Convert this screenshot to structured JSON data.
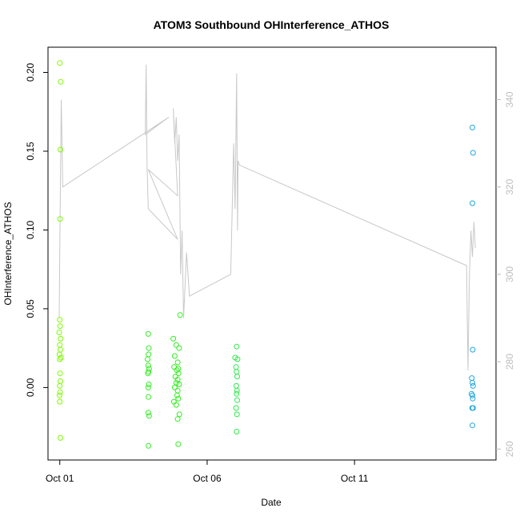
{
  "chart_data": {
    "type": "scatter",
    "title": "ATOM3 Southbound OHInterference_ATHOS",
    "xlabel": "Date",
    "ylabel": "OHInterference_ATHOS",
    "x_unit": "day of October",
    "xlim": [
      0.6,
      15.8
    ],
    "ylim": [
      -0.046,
      0.216
    ],
    "ylim_right": [
      257.5,
      352
    ],
    "x_ticks": [
      {
        "value": 1,
        "label": "Oct 01"
      },
      {
        "value": 6,
        "label": "Oct 06"
      },
      {
        "value": 11,
        "label": "Oct 11"
      }
    ],
    "y_ticks": [
      {
        "value": 0.0,
        "label": "0.00"
      },
      {
        "value": 0.05,
        "label": "0.05"
      },
      {
        "value": 0.1,
        "label": "0.10"
      },
      {
        "value": 0.15,
        "label": "0.15"
      },
      {
        "value": 0.2,
        "label": "0.20"
      }
    ],
    "y_ticks_right": [
      {
        "value": 260,
        "label": "260"
      },
      {
        "value": 280,
        "label": "280"
      },
      {
        "value": 300,
        "label": "300"
      },
      {
        "value": 320,
        "label": "320"
      },
      {
        "value": 340,
        "label": "340"
      }
    ],
    "grid": false,
    "series": [
      {
        "kind": "points",
        "color": "#7cfc00",
        "points": [
          [
            1.0,
            0.206
          ],
          [
            1.03,
            0.194
          ],
          [
            1.02,
            0.151
          ],
          [
            1.01,
            0.107
          ],
          [
            1.0,
            0.043
          ],
          [
            1.01,
            0.039
          ],
          [
            0.98,
            0.035
          ],
          [
            1.03,
            0.031
          ],
          [
            1.0,
            0.027
          ],
          [
            1.02,
            0.024
          ],
          [
            0.99,
            0.021
          ],
          [
            1.04,
            0.019
          ],
          [
            1.0,
            0.018
          ],
          [
            1.01,
            0.009
          ],
          [
            1.02,
            0.004
          ],
          [
            1.0,
            0.001
          ],
          [
            1.01,
            -0.003
          ],
          [
            0.99,
            -0.005
          ],
          [
            1.0,
            -0.009
          ],
          [
            1.02,
            -0.032
          ]
        ]
      },
      {
        "kind": "points",
        "color": "#33ee22",
        "points": [
          [
            4.0,
            0.034
          ],
          [
            4.02,
            0.025
          ],
          [
            4.01,
            0.021
          ],
          [
            3.98,
            0.018
          ],
          [
            4.0,
            0.014
          ],
          [
            4.03,
            0.012
          ],
          [
            4.01,
            0.01
          ],
          [
            3.99,
            0.009
          ],
          [
            4.02,
            0.002
          ],
          [
            4.0,
            0.0
          ],
          [
            4.01,
            -0.006
          ],
          [
            4.0,
            -0.016
          ],
          [
            4.03,
            -0.018
          ],
          [
            4.01,
            -0.037
          ],
          [
            4.85,
            0.031
          ],
          [
            4.95,
            0.027
          ],
          [
            5.05,
            0.025
          ],
          [
            4.9,
            0.02
          ],
          [
            5.0,
            0.016
          ],
          [
            4.88,
            0.013
          ],
          [
            5.02,
            0.012
          ],
          [
            4.97,
            0.011
          ],
          [
            5.03,
            0.009
          ],
          [
            4.92,
            0.007
          ],
          [
            5.0,
            0.005
          ],
          [
            4.95,
            0.003
          ],
          [
            5.05,
            0.002
          ],
          [
            4.9,
            0.0
          ],
          [
            5.0,
            -0.002
          ],
          [
            4.98,
            -0.005
          ],
          [
            5.02,
            -0.007
          ],
          [
            4.87,
            -0.009
          ],
          [
            4.95,
            -0.011
          ],
          [
            5.06,
            -0.017
          ],
          [
            5.0,
            -0.02
          ],
          [
            5.08,
            0.046
          ],
          [
            5.02,
            -0.036
          ]
        ]
      },
      {
        "kind": "points",
        "color": "#2ee84a",
        "points": [
          [
            7.0,
            0.026
          ],
          [
            6.95,
            0.019
          ],
          [
            7.03,
            0.018
          ],
          [
            6.98,
            0.013
          ],
          [
            7.0,
            0.01
          ],
          [
            7.02,
            0.007
          ],
          [
            6.99,
            0.001
          ],
          [
            7.01,
            -0.002
          ],
          [
            7.0,
            -0.004
          ],
          [
            7.02,
            -0.008
          ],
          [
            6.98,
            -0.013
          ],
          [
            7.01,
            -0.017
          ],
          [
            7.0,
            -0.028
          ]
        ]
      },
      {
        "kind": "points",
        "color": "#1fa8e0",
        "points": [
          [
            15.0,
            0.165
          ],
          [
            15.02,
            0.149
          ],
          [
            15.0,
            0.117
          ],
          [
            15.01,
            0.024
          ],
          [
            14.98,
            0.006
          ],
          [
            15.0,
            0.003
          ],
          [
            15.02,
            0.001
          ],
          [
            14.97,
            -0.004
          ],
          [
            15.0,
            -0.005
          ],
          [
            15.01,
            -0.007
          ],
          [
            14.99,
            -0.013
          ],
          [
            15.02,
            -0.013
          ],
          [
            15.0,
            -0.024
          ]
        ]
      },
      {
        "kind": "line",
        "axis": "right",
        "color": "#c8c8c8",
        "points": [
          [
            0.98,
            290
          ],
          [
            1.0,
            305
          ],
          [
            1.02,
            320
          ],
          [
            1.05,
            340
          ],
          [
            1.08,
            328
          ],
          [
            1.1,
            320
          ],
          [
            4.7,
            336
          ],
          [
            3.9,
            332
          ],
          [
            3.93,
            348
          ],
          [
            3.96,
            325
          ],
          [
            4.0,
            315
          ],
          [
            5.0,
            308
          ],
          [
            4.0,
            324
          ],
          [
            5.0,
            318
          ],
          [
            4.85,
            338
          ],
          [
            4.9,
            330
          ],
          [
            4.95,
            336
          ],
          [
            5.0,
            326
          ],
          [
            5.05,
            332
          ],
          [
            5.1,
            300
          ],
          [
            5.15,
            310
          ],
          [
            5.2,
            290
          ],
          [
            5.3,
            305
          ],
          [
            5.4,
            295
          ],
          [
            6.8,
            300
          ],
          [
            6.9,
            330
          ],
          [
            6.95,
            315
          ],
          [
            7.0,
            346
          ],
          [
            7.03,
            310
          ],
          [
            7.05,
            326
          ],
          [
            7.1,
            325
          ],
          [
            14.8,
            302
          ],
          [
            14.85,
            278
          ],
          [
            14.9,
            300
          ],
          [
            14.95,
            310
          ],
          [
            15.0,
            304
          ],
          [
            15.05,
            312
          ],
          [
            15.1,
            306
          ]
        ]
      }
    ]
  }
}
